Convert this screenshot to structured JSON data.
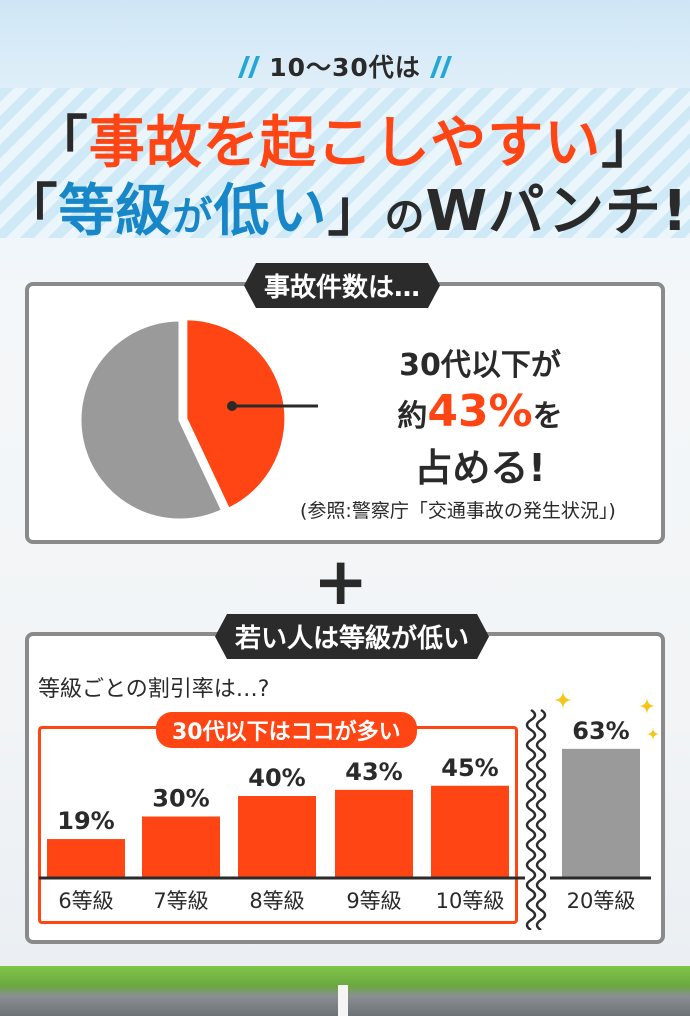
{
  "header": {
    "tagline": "10〜30代は",
    "line1": {
      "open": "「",
      "main": "事故を起こしやすい",
      "close": "」"
    },
    "line2": {
      "open": "「",
      "main1": "等級",
      "ga": "が",
      "main2": "低い",
      "close": "」",
      "no": "の",
      "rest": "Wパンチ!"
    }
  },
  "section1": {
    "title": "事故件数は…",
    "callout_line1": "30代以下が",
    "callout_prefix": "約",
    "callout_value": "43%",
    "callout_suffix": "を",
    "callout_line3": "占める!",
    "source": "(参照:警察庁「交通事故の発生状況」)"
  },
  "plus_sign": "+",
  "section2": {
    "title": "若い人は等級が低い",
    "question": "等級ごとの割引率は…?",
    "highlight_label": "30代以下はココが多い"
  },
  "colors": {
    "accent": "#ff4514",
    "gray": "#9a9a9a",
    "blue": "#1787c7",
    "dark": "#2b2b2b"
  },
  "chart_data": [
    {
      "type": "pie",
      "slices": [
        {
          "label": "30代以下",
          "value": 43,
          "color": "#ff4514"
        },
        {
          "label": "",
          "value": 57,
          "color": "#9a9a9a"
        }
      ]
    },
    {
      "type": "bar",
      "categories": [
        "6等級",
        "7等級",
        "8等級",
        "9等級",
        "10等級",
        "20等級"
      ],
      "values": [
        19,
        30,
        40,
        43,
        45,
        63
      ],
      "labels": [
        "19%",
        "30%",
        "40%",
        "43%",
        "45%",
        "63%"
      ],
      "colors": [
        "#ff4514",
        "#ff4514",
        "#ff4514",
        "#ff4514",
        "#ff4514",
        "#9a9a9a"
      ],
      "axis_break_before_last": true
    }
  ]
}
